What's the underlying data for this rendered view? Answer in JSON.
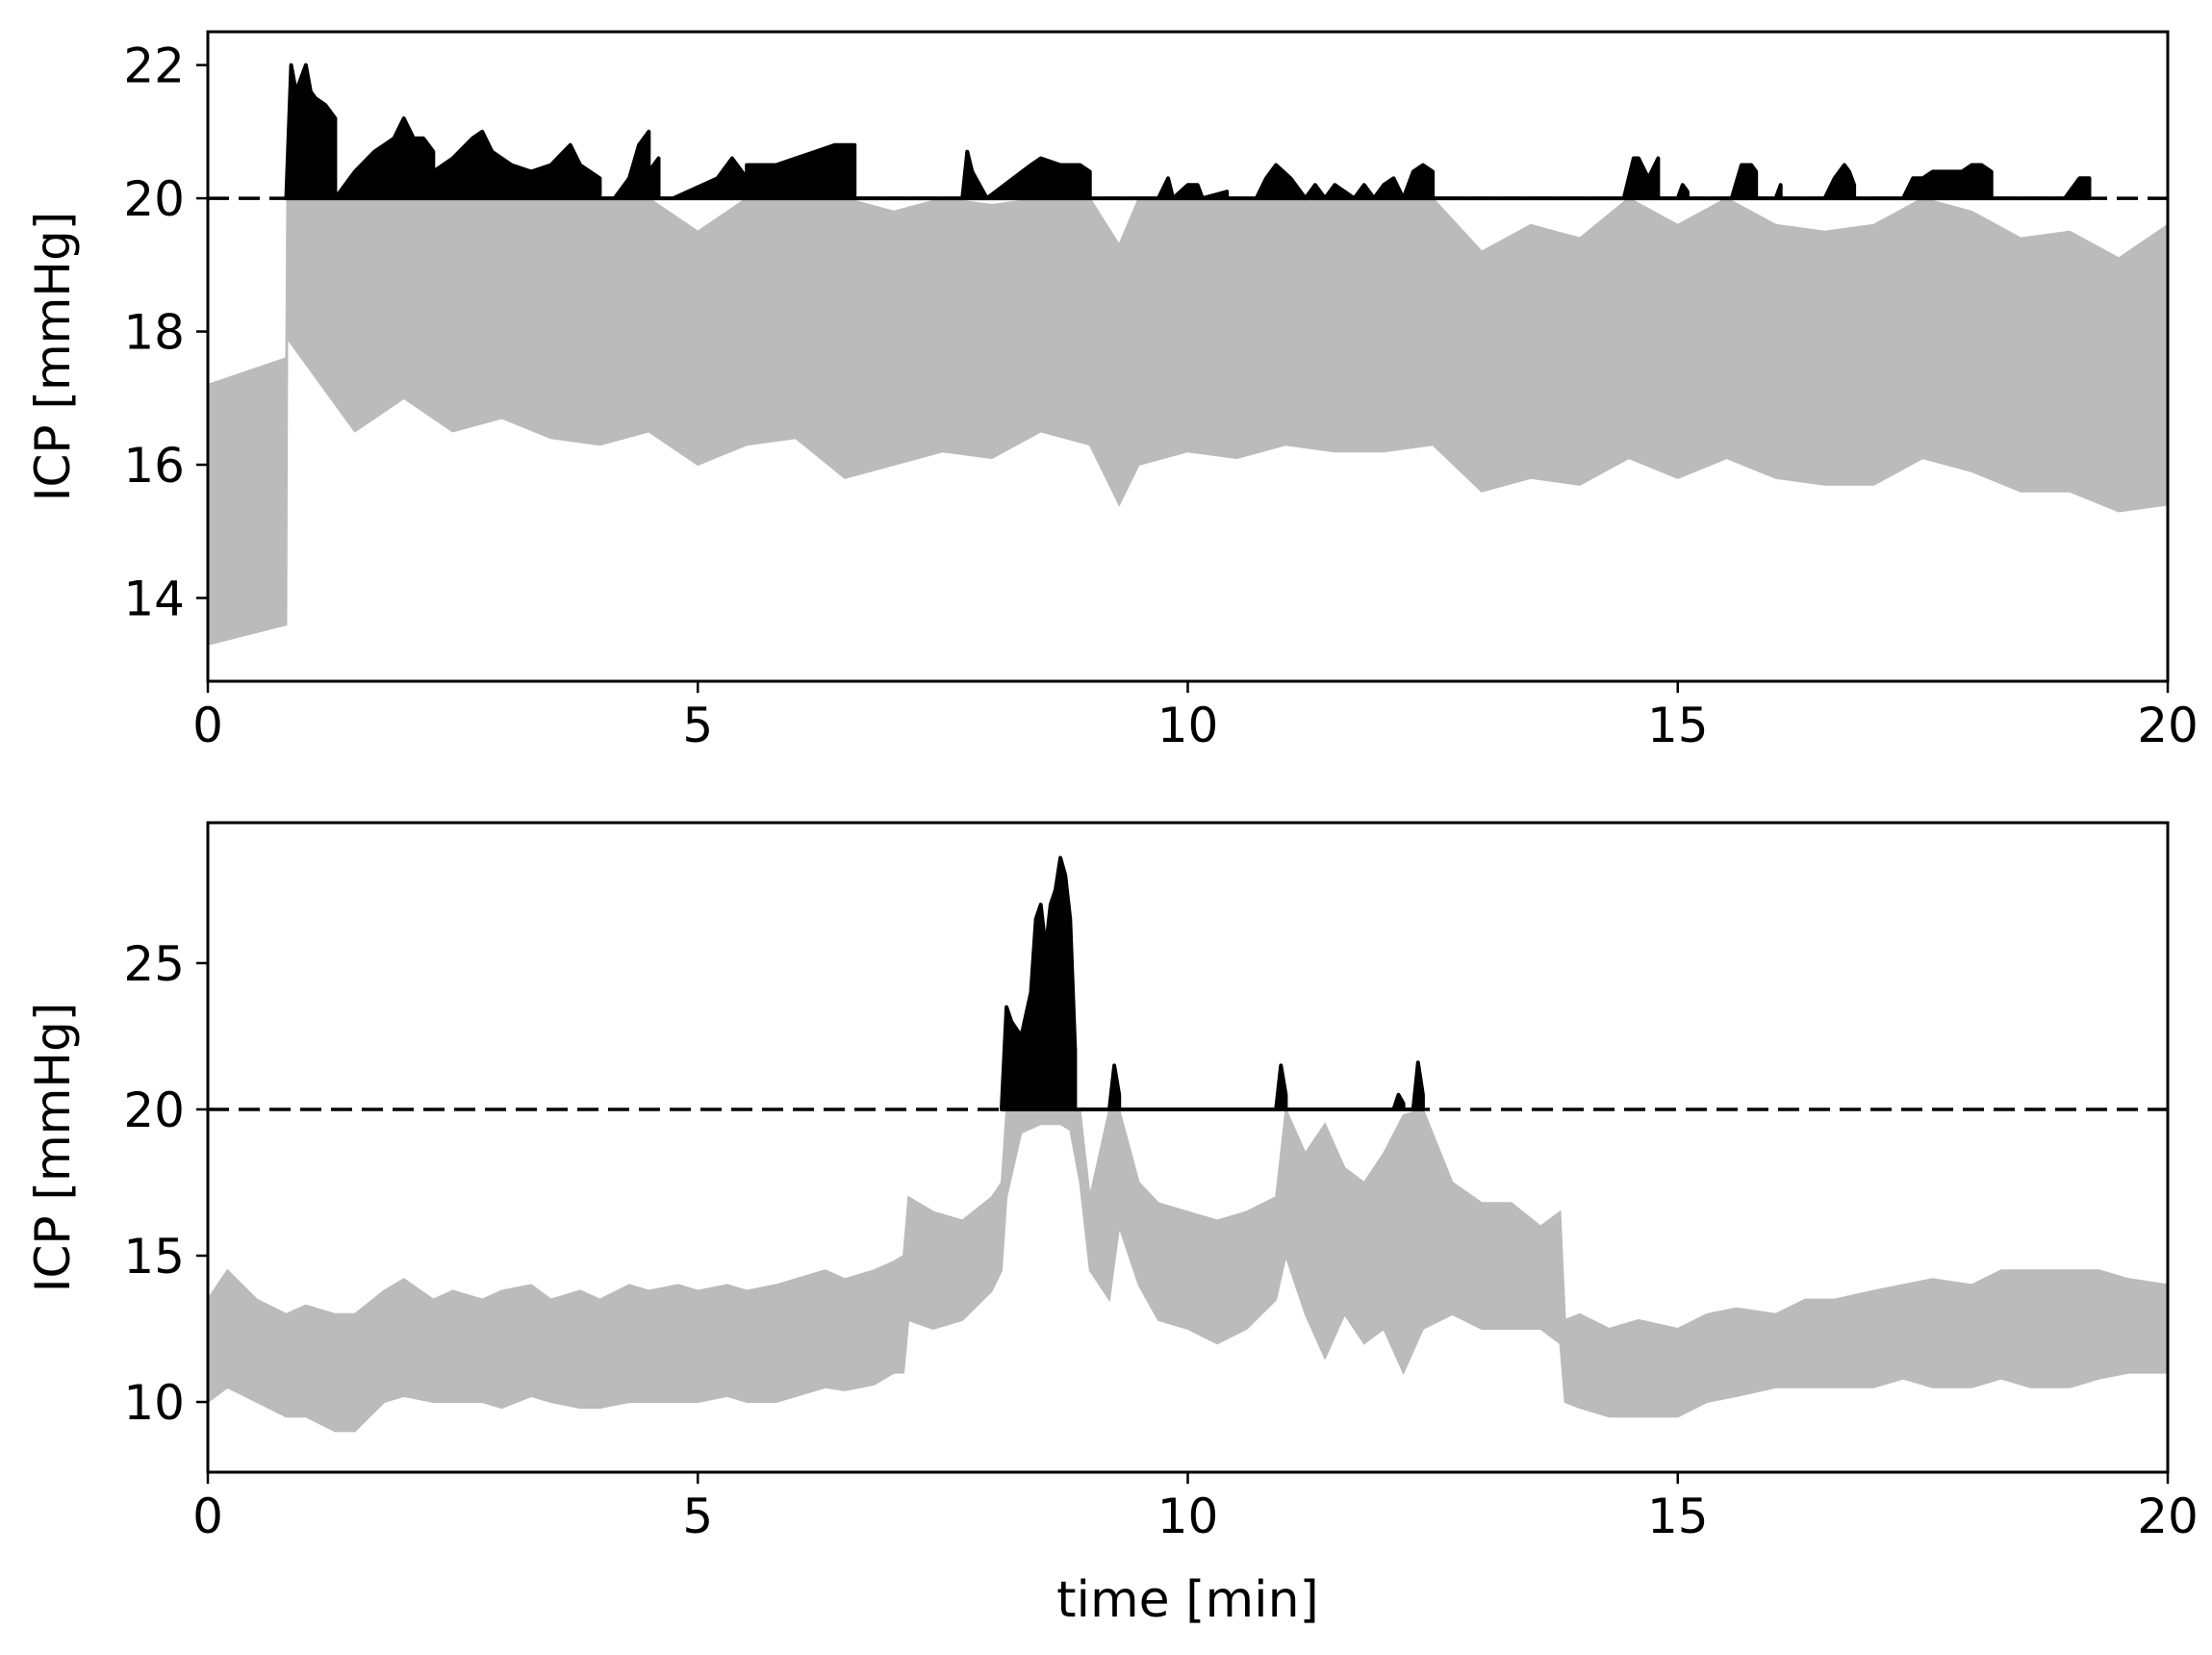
{
  "chart_data": [
    {
      "type": "line",
      "xlabel": "",
      "ylabel": "ICP [mmHg]",
      "xlim": [
        0,
        20
      ],
      "ylim": [
        12.75,
        22.5
      ],
      "xticks": [
        0,
        5,
        10,
        15,
        20
      ],
      "yticks": [
        14,
        16,
        18,
        20,
        22
      ],
      "threshold": 20,
      "grid": false,
      "colors": {
        "signal": "#bbbbbb",
        "above_threshold": "#000000",
        "threshold_line": "#000000"
      },
      "series": [
        {
          "name": "",
          "style": "band",
          "x": [
            0,
            0.8,
            0.81,
            1.5,
            2,
            2.5,
            3,
            3.5,
            4,
            4.5,
            5,
            5.5,
            6,
            6.5,
            7,
            7.5,
            8,
            8.5,
            9,
            9.3,
            9.5,
            10,
            10.5,
            11,
            11.5,
            12,
            12.5,
            13,
            13.5,
            14,
            14.5,
            15,
            15.5,
            16,
            16.5,
            17,
            17.5,
            18,
            18.5,
            19,
            19.5,
            20
          ],
          "low": [
            13.3,
            13.6,
            17.9,
            16.5,
            17.0,
            16.5,
            16.7,
            16.4,
            16.3,
            16.5,
            16.0,
            16.3,
            16.4,
            15.8,
            16.0,
            16.2,
            16.1,
            16.5,
            16.3,
            15.4,
            16.0,
            16.2,
            16.1,
            16.3,
            16.2,
            16.2,
            16.3,
            15.6,
            15.8,
            15.7,
            16.1,
            15.8,
            16.1,
            15.8,
            15.7,
            15.7,
            16.1,
            15.9,
            15.6,
            15.6,
            15.3,
            15.4
          ],
          "high": [
            17.2,
            17.6,
            20.0,
            20.0,
            20.0,
            20.0,
            20.0,
            20.0,
            20.0,
            20.0,
            19.5,
            20.0,
            20.0,
            20.0,
            19.8,
            20.0,
            19.9,
            20.0,
            20.0,
            19.3,
            20.0,
            20.0,
            20.0,
            20.0,
            20.0,
            20.0,
            20.0,
            19.2,
            19.6,
            19.4,
            20.0,
            19.6,
            20.0,
            19.6,
            19.5,
            19.6,
            20.0,
            19.8,
            19.4,
            19.5,
            19.1,
            19.6
          ]
        },
        {
          "name": "",
          "style": "above",
          "x": [
            0.8,
            0.85,
            0.9,
            1.0,
            1.05,
            1.1,
            1.2,
            1.3,
            1.3,
            1.5,
            1.7,
            1.9,
            2.0,
            2.1,
            2.2,
            2.3,
            2.3,
            2.5,
            2.7,
            2.8,
            2.9,
            3.1,
            3.3,
            3.5,
            3.7,
            3.8,
            3.9,
            4.0,
            4.0,
            4.15,
            4.3,
            4.4,
            4.5,
            4.5,
            4.6,
            4.6,
            4.75,
            4.75,
            5.2,
            5.35,
            5.5,
            5.5,
            5.7,
            5.8,
            6.0,
            6.2,
            6.4,
            6.6,
            6.6,
            7.7,
            7.75,
            7.8,
            7.95,
            7.95,
            8.4,
            8.5,
            8.7,
            8.9,
            9.0,
            9.0,
            9.7,
            9.8,
            9.85,
            9.85,
            10.0,
            10.1,
            10.15,
            10.15,
            10.4,
            10.4,
            10.7,
            10.8,
            10.9,
            11.05,
            11.1,
            11.2,
            11.3,
            11.4,
            11.5,
            11.6,
            11.7,
            11.8,
            11.9,
            12.0,
            12.1,
            12.2,
            12.3,
            12.4,
            12.5,
            12.5,
            14.45,
            14.55,
            14.6,
            14.7,
            14.8,
            14.8,
            15.0,
            15.05,
            15.1,
            15.1,
            15.55,
            15.65,
            15.75,
            15.8,
            15.8,
            16.0,
            16.05,
            16.05,
            16.5,
            16.6,
            16.7,
            16.75,
            16.8,
            16.8,
            17.3,
            17.4,
            17.5,
            17.6,
            17.7,
            17.8,
            17.9,
            18.0,
            18.1,
            18.2,
            18.2,
            18.95,
            19.05,
            19.1,
            19.2,
            19.2
          ],
          "y": [
            20.0,
            22.0,
            21.6,
            22.0,
            21.6,
            21.5,
            21.4,
            21.2,
            20.0,
            20.4,
            20.7,
            20.9,
            21.2,
            20.9,
            20.9,
            20.7,
            20.4,
            20.6,
            20.9,
            21.0,
            20.7,
            20.5,
            20.4,
            20.5,
            20.8,
            20.5,
            20.4,
            20.3,
            20.0,
            20.0,
            20.3,
            20.8,
            21.0,
            20.4,
            20.6,
            20.0,
            20.0,
            20.0,
            20.3,
            20.6,
            20.3,
            20.5,
            20.5,
            20.5,
            20.6,
            20.7,
            20.8,
            20.8,
            20.0,
            20.0,
            20.7,
            20.4,
            20.0,
            20.0,
            20.5,
            20.6,
            20.5,
            20.5,
            20.4,
            20.0,
            20.0,
            20.3,
            20.0,
            20.0,
            20.2,
            20.2,
            20.0,
            20.0,
            20.1,
            20.0,
            20.0,
            20.3,
            20.5,
            20.3,
            20.2,
            20.0,
            20.2,
            20.0,
            20.2,
            20.1,
            20.0,
            20.2,
            20.0,
            20.2,
            20.3,
            20.0,
            20.4,
            20.5,
            20.4,
            20.0,
            20.0,
            20.6,
            20.6,
            20.3,
            20.6,
            20.0,
            20.0,
            20.2,
            20.1,
            20.0,
            20.0,
            20.5,
            20.5,
            20.4,
            20.0,
            20.0,
            20.2,
            20.0,
            20.0,
            20.3,
            20.5,
            20.4,
            20.2,
            20.0,
            20.0,
            20.3,
            20.3,
            20.4,
            20.4,
            20.4,
            20.4,
            20.5,
            20.5,
            20.4,
            20.0,
            20.0,
            20.2,
            20.3,
            20.3,
            20.0
          ]
        },
        {
          "name": "",
          "style": "dashed",
          "x": [
            0,
            20
          ],
          "y": [
            20,
            20
          ]
        }
      ]
    },
    {
      "type": "line",
      "xlabel": "time [min]",
      "ylabel": "ICP [mmHg]",
      "xlim": [
        0,
        20
      ],
      "ylim": [
        7.6,
        29.8
      ],
      "xticks": [
        0,
        5,
        10,
        15,
        20
      ],
      "yticks": [
        10,
        15,
        20,
        25
      ],
      "threshold": 20,
      "grid": false,
      "colors": {
        "signal": "#bbbbbb",
        "above_threshold": "#000000",
        "threshold_line": "#000000"
      },
      "series": [
        {
          "name": "",
          "style": "band",
          "x": [
            0,
            0.2,
            0.5,
            0.8,
            1.0,
            1.3,
            1.5,
            1.8,
            2.0,
            2.3,
            2.5,
            2.8,
            3.0,
            3.3,
            3.5,
            3.8,
            4.0,
            4.3,
            4.5,
            4.8,
            5.0,
            5.3,
            5.5,
            5.8,
            6.0,
            6.3,
            6.5,
            6.8,
            7.0,
            7.1,
            7.15,
            7.4,
            7.7,
            8.0,
            8.1,
            8.15,
            8.3,
            8.5,
            8.7,
            8.8,
            8.9,
            9.0,
            9.2,
            9.3,
            9.5,
            9.7,
            10.0,
            10.3,
            10.6,
            10.9,
            11.0,
            11.2,
            11.4,
            11.6,
            11.8,
            12.0,
            12.2,
            12.4,
            12.7,
            13.0,
            13.3,
            13.6,
            13.8,
            13.85,
            14.0,
            14.3,
            14.6,
            15.0,
            15.3,
            15.6,
            16.0,
            16.3,
            16.6,
            17.0,
            17.3,
            17.6,
            18.0,
            18.3,
            18.6,
            19.0,
            19.3,
            19.6,
            20.0
          ],
          "low": [
            10.0,
            10.5,
            10.0,
            9.5,
            9.5,
            9.0,
            9.0,
            10.0,
            10.2,
            10.0,
            10.0,
            10.0,
            9.8,
            10.2,
            10.0,
            9.8,
            9.8,
            10.0,
            10.0,
            10.0,
            10.0,
            10.2,
            10.0,
            10.0,
            10.2,
            10.5,
            10.4,
            10.6,
            11.0,
            11.0,
            12.8,
            12.5,
            12.8,
            13.8,
            14.5,
            17.0,
            19.2,
            19.5,
            19.5,
            19.3,
            17.5,
            14.5,
            13.5,
            16.0,
            14.0,
            12.8,
            12.5,
            12.0,
            12.5,
            13.5,
            15.0,
            13.0,
            11.5,
            13.0,
            12.0,
            12.5,
            11.0,
            12.5,
            13.0,
            12.5,
            12.5,
            12.5,
            12.0,
            10.0,
            9.8,
            9.5,
            9.5,
            9.5,
            10.0,
            10.2,
            10.5,
            10.5,
            10.5,
            10.5,
            10.8,
            10.5,
            10.5,
            10.8,
            10.5,
            10.5,
            10.8,
            11.0,
            11.0
          ],
          "high": [
            13.5,
            14.5,
            13.5,
            13.0,
            13.3,
            13.0,
            13.0,
            13.8,
            14.2,
            13.5,
            13.8,
            13.5,
            13.8,
            14.0,
            13.5,
            13.8,
            13.5,
            14.0,
            13.8,
            14.0,
            13.8,
            14.0,
            13.8,
            14.0,
            14.2,
            14.5,
            14.2,
            14.5,
            14.8,
            15.0,
            17.0,
            16.5,
            16.2,
            17.0,
            17.5,
            20.0,
            20.0,
            20.0,
            20.0,
            20.0,
            20.0,
            17.0,
            20.0,
            20.0,
            17.5,
            16.8,
            16.5,
            16.2,
            16.5,
            17.0,
            20.0,
            18.5,
            19.5,
            18.0,
            17.5,
            18.5,
            19.8,
            20.0,
            17.5,
            16.8,
            16.8,
            16.0,
            16.5,
            12.8,
            13.0,
            12.5,
            12.8,
            12.5,
            13.0,
            13.2,
            13.0,
            13.5,
            13.5,
            13.8,
            14.0,
            14.2,
            14.0,
            14.5,
            14.5,
            14.5,
            14.5,
            14.2,
            14.0
          ]
        },
        {
          "name": "",
          "style": "above",
          "x": [
            8.1,
            8.15,
            8.2,
            8.3,
            8.4,
            8.45,
            8.5,
            8.55,
            8.6,
            8.65,
            8.7,
            8.75,
            8.8,
            8.85,
            8.85,
            9.2,
            9.25,
            9.3,
            9.3,
            10.9,
            10.95,
            11.0,
            11.0,
            12.1,
            12.15,
            12.2,
            12.2,
            12.3,
            12.35,
            12.4,
            12.4
          ],
          "y": [
            20.0,
            23.5,
            23.0,
            22.5,
            24.0,
            26.5,
            27.0,
            25.5,
            27.0,
            27.5,
            28.6,
            28.0,
            26.5,
            22.0,
            20.0,
            20.0,
            21.5,
            20.5,
            20.0,
            20.0,
            21.5,
            20.5,
            20.0,
            20.0,
            20.5,
            20.2,
            20.0,
            20.0,
            21.6,
            20.5,
            20.0
          ]
        },
        {
          "name": "",
          "style": "dashed",
          "x": [
            0,
            20
          ],
          "y": [
            20,
            20
          ]
        }
      ]
    }
  ]
}
